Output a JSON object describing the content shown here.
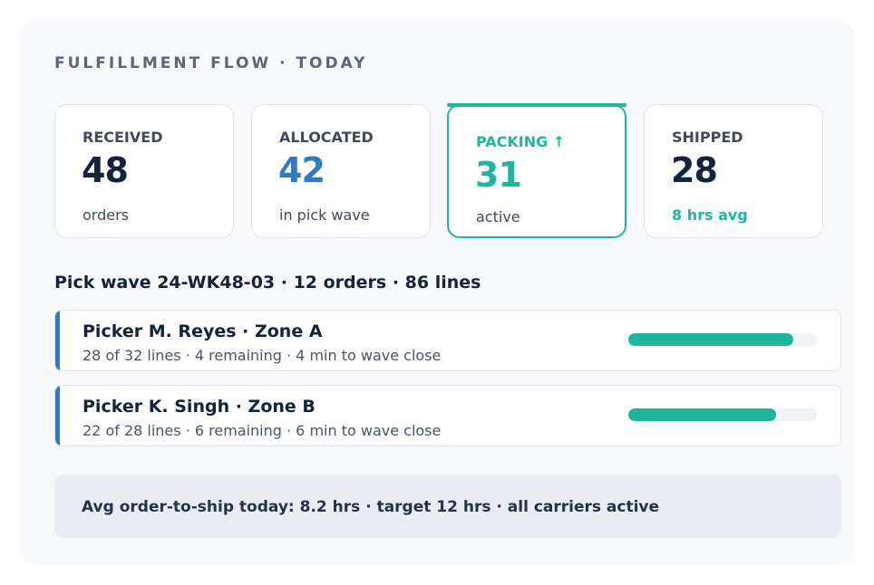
{
  "panel": {
    "title": "FULFILLMENT FLOW · TODAY"
  },
  "cards": [
    {
      "label": "RECEIVED",
      "value": "48",
      "sub": "orders",
      "value_color": "#14233c",
      "sub_color": "#3f4a5c"
    },
    {
      "label": "ALLOCATED",
      "value": "42",
      "sub": "in pick wave",
      "value_color": "#2f79c8",
      "sub_color": "#3f4a5c"
    },
    {
      "label": "PACKING ↑",
      "value": "31",
      "sub": "active",
      "value_color": "#20b59c",
      "sub_color": "#3f4a5c",
      "active": true
    },
    {
      "label": "SHIPPED",
      "value": "28",
      "sub": "8 hrs avg",
      "value_color": "#14233c",
      "sub_color": "#20b59c"
    }
  ],
  "wave": {
    "heading": "Pick wave 24-WK48-03 · 12 orders · 86 lines"
  },
  "pickers": [
    {
      "name": "Picker M. Reyes · Zone A",
      "detail": "28 of 32 lines · 4 remaining · 4 min to wave close",
      "progress": 0.875
    },
    {
      "name": "Picker K. Singh · Zone B",
      "detail": "22 of 28 lines · 6 remaining · 6 min to wave close",
      "progress": 0.786
    }
  ],
  "footer": {
    "text": "Avg order-to-ship today: 8.2 hrs · target 12 hrs · all carriers active"
  },
  "colors": {
    "accent": "#20b59c",
    "blue": "#2f79c8",
    "ink": "#14233c"
  }
}
